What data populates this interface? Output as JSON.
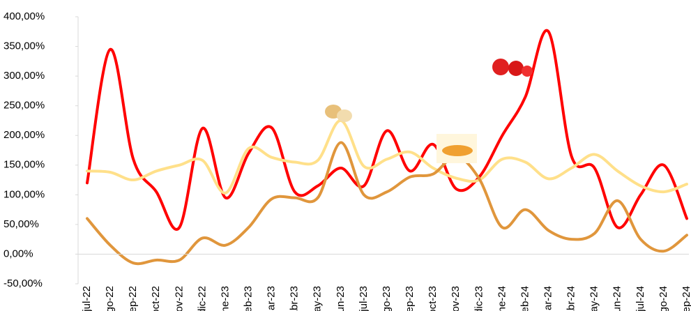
{
  "chart_data": {
    "type": "line",
    "categories": [
      "jul-22",
      "ago-22",
      "sep-22",
      "oct-22",
      "nov-22",
      "dic-22",
      "ene-23",
      "feb-23",
      "mar-23",
      "abr-23",
      "may-23",
      "jun-23",
      "jul-23",
      "ago-23",
      "sep-23",
      "oct-23",
      "nov-23",
      "dic-23",
      "ene-24",
      "feb-24",
      "mar-24",
      "abr-24",
      "may-24",
      "jun-24",
      "jul-24",
      "ago-24",
      "sep-24"
    ],
    "series": [
      {
        "color": "#ff0000",
        "values": [
          120,
          345,
          160,
          105,
          45,
          212,
          95,
          170,
          213,
          105,
          115,
          145,
          115,
          208,
          140,
          185,
          110,
          130,
          200,
          265,
          375,
          165,
          145,
          45,
          100,
          150,
          60
        ]
      },
      {
        "color": "#ffe08a",
        "values": [
          140,
          138,
          125,
          140,
          150,
          158,
          103,
          178,
          163,
          155,
          158,
          225,
          148,
          160,
          172,
          145,
          128,
          125,
          160,
          155,
          127,
          145,
          168,
          140,
          115,
          105,
          118
        ]
      },
      {
        "color": "#e0963c",
        "values": [
          60,
          15,
          -15,
          -10,
          -10,
          27,
          15,
          45,
          93,
          95,
          95,
          188,
          100,
          105,
          130,
          135,
          165,
          127,
          45,
          75,
          40,
          25,
          35,
          90,
          25,
          5,
          32
        ]
      }
    ],
    "ylim": [
      -50,
      400
    ],
    "yticks": [
      {
        "value": -50,
        "label": "-50,00%"
      },
      {
        "value": 0,
        "label": "0,00%"
      },
      {
        "value": 50,
        "label": "50,00%"
      },
      {
        "value": 100,
        "label": "100,00%"
      },
      {
        "value": 150,
        "label": "150,00%"
      },
      {
        "value": 200,
        "label": "200,00%"
      },
      {
        "value": 250,
        "label": "250,00%"
      },
      {
        "value": 300,
        "label": "300,00%"
      },
      {
        "value": 350,
        "label": "350,00%"
      },
      {
        "value": 400,
        "label": "400,00%"
      }
    ]
  }
}
